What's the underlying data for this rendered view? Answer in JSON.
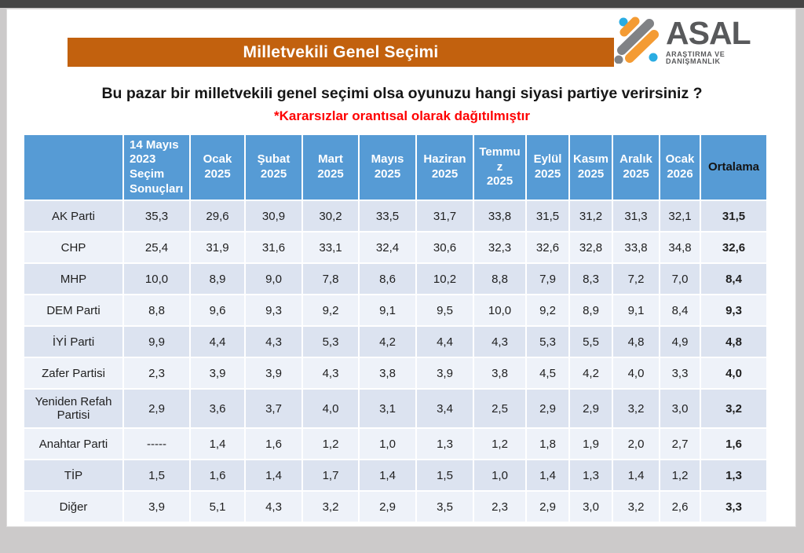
{
  "slide": {
    "banner": {
      "title": "Milletvekili Genel Seçimi",
      "bg_color": "#c2610e"
    },
    "logo": {
      "brand": "ASAL",
      "subtitle": "ARAŞTIRMA VE DANIŞMANLIK",
      "brand_color": "#58595b",
      "mark_orange": "#f49b33",
      "mark_gray": "#808285",
      "mark_blue": "#2aace2"
    },
    "question": "Bu pazar bir milletvekili genel seçimi olsa oyunuzu hangi siyasi partiye verirsiniz ?",
    "note": "*Kararsızlar orantısal olarak dağıtılmıştır",
    "note_color": "#fe0000"
  },
  "colors": {
    "table_header_bg": "#569bd5",
    "table_header_text": "#ffffff",
    "row_band_dark": "#dce3f0",
    "row_band_light": "#eef2f9",
    "page_background": "#cccaca"
  },
  "chart_data": {
    "type": "table",
    "title": "Milletvekili Genel Seçimi",
    "average_label": "Ortalama",
    "columns": [
      {
        "id": "secim-2023",
        "lines": [
          "14 Mayıs",
          "2023",
          "Seçim",
          "Sonuçları"
        ],
        "align": "left"
      },
      {
        "id": "ocak-2025",
        "lines": [
          "Ocak",
          "2025"
        ]
      },
      {
        "id": "subat-2025",
        "lines": [
          "Şubat",
          "2025"
        ]
      },
      {
        "id": "mart-2025",
        "lines": [
          "Mart",
          "2025"
        ]
      },
      {
        "id": "mayis-2025",
        "lines": [
          "Mayıs",
          "2025"
        ]
      },
      {
        "id": "haziran-2025",
        "lines": [
          "Haziran",
          "2025"
        ]
      },
      {
        "id": "temmuz-2025",
        "lines": [
          "Temmu",
          "z",
          "2025"
        ]
      },
      {
        "id": "eylul-2025",
        "lines": [
          "Eylül",
          "2025"
        ]
      },
      {
        "id": "kasim-2025",
        "lines": [
          "Kasım",
          "2025"
        ]
      },
      {
        "id": "aralik-2025",
        "lines": [
          "Aralık",
          "2025"
        ]
      },
      {
        "id": "ocak-2026",
        "lines": [
          "Ocak",
          "2026"
        ]
      }
    ],
    "rows": [
      {
        "party": "AK Parti",
        "values": [
          "35,3",
          "29,6",
          "30,9",
          "30,2",
          "33,5",
          "31,7",
          "33,8",
          "31,5",
          "31,2",
          "31,3",
          "32,1"
        ],
        "average": "31,5"
      },
      {
        "party": "CHP",
        "values": [
          "25,4",
          "31,9",
          "31,6",
          "33,1",
          "32,4",
          "30,6",
          "32,3",
          "32,6",
          "32,8",
          "33,8",
          "34,8"
        ],
        "average": "32,6"
      },
      {
        "party": "MHP",
        "values": [
          "10,0",
          "8,9",
          "9,0",
          "7,8",
          "8,6",
          "10,2",
          "8,8",
          "7,9",
          "8,3",
          "7,2",
          "7,0"
        ],
        "average": "8,4"
      },
      {
        "party": "DEM Parti",
        "values": [
          "8,8",
          "9,6",
          "9,3",
          "9,2",
          "9,1",
          "9,5",
          "10,0",
          "9,2",
          "8,9",
          "9,1",
          "8,4"
        ],
        "average": "9,3"
      },
      {
        "party": "İYİ Parti",
        "values": [
          "9,9",
          "4,4",
          "4,3",
          "5,3",
          "4,2",
          "4,4",
          "4,3",
          "5,3",
          "5,5",
          "4,8",
          "4,9"
        ],
        "average": "4,8"
      },
      {
        "party": "Zafer Partisi",
        "values": [
          "2,3",
          "3,9",
          "3,9",
          "4,3",
          "3,8",
          "3,9",
          "3,8",
          "4,5",
          "4,2",
          "4,0",
          "3,3"
        ],
        "average": "4,0"
      },
      {
        "party": "Yeniden Refah Partisi",
        "values": [
          "2,9",
          "3,6",
          "3,7",
          "4,0",
          "3,1",
          "3,4",
          "2,5",
          "2,9",
          "2,9",
          "3,2",
          "3,0"
        ],
        "average": "3,2"
      },
      {
        "party": "Anahtar Parti",
        "values": [
          "-----",
          "1,4",
          "1,6",
          "1,2",
          "1,0",
          "1,3",
          "1,2",
          "1,8",
          "1,9",
          "2,0",
          "2,7"
        ],
        "average": "1,6"
      },
      {
        "party": "TİP",
        "values": [
          "1,5",
          "1,6",
          "1,4",
          "1,7",
          "1,4",
          "1,5",
          "1,0",
          "1,4",
          "1,3",
          "1,4",
          "1,2"
        ],
        "average": "1,3"
      },
      {
        "party": "Diğer",
        "values": [
          "3,9",
          "5,1",
          "4,3",
          "3,2",
          "2,9",
          "3,5",
          "2,3",
          "2,9",
          "3,0",
          "3,2",
          "2,6"
        ],
        "average": "3,3"
      }
    ]
  }
}
